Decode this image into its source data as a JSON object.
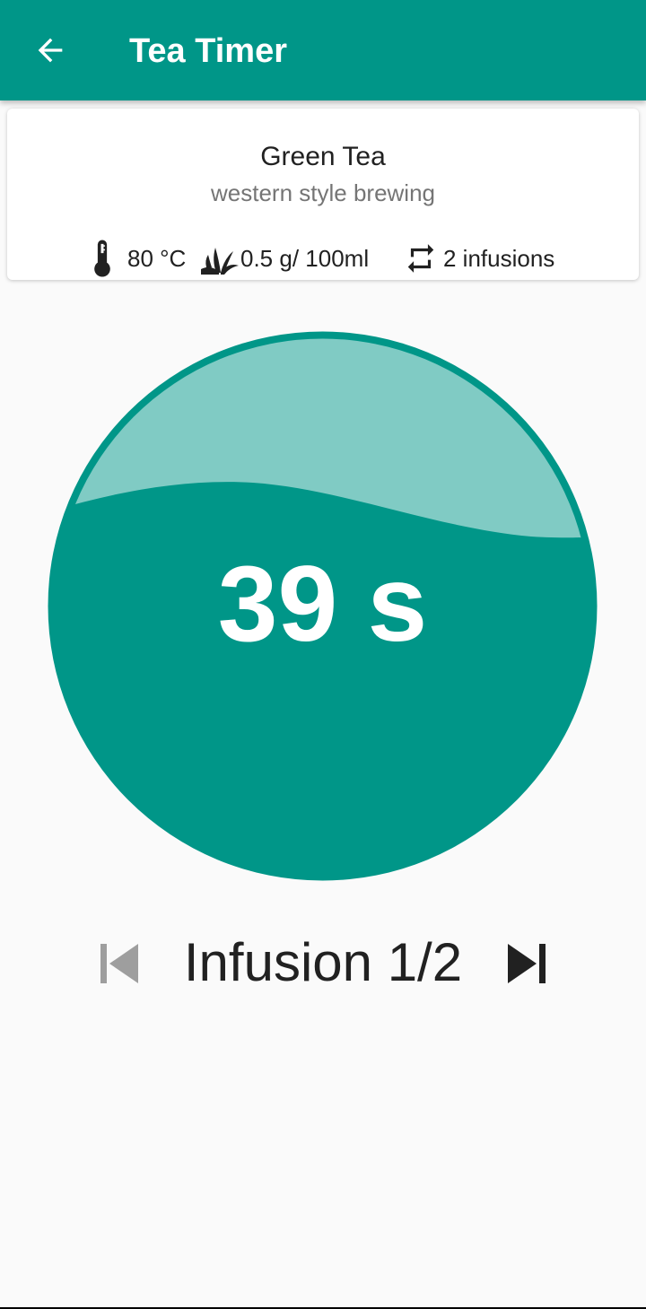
{
  "app_bar": {
    "title": "Tea Timer",
    "back_icon": "arrow-back-icon",
    "color": "#009688"
  },
  "tea": {
    "name": "Green Tea",
    "style": "western style brewing",
    "temperature": "80 °C",
    "temperature_icon": "thermometer-icon",
    "amount": "0.5 g/ 100ml",
    "amount_icon": "leaves-icon",
    "infusions": "2 infusions",
    "infusions_icon": "repeat-icon"
  },
  "timer": {
    "remaining": "39 s",
    "fill_fraction": 0.68,
    "fill_color": "#009688",
    "empty_color": "#80cbc4"
  },
  "infusion": {
    "label": "Infusion 1/2",
    "current": 1,
    "total": 2,
    "previous_icon": "skip-previous-icon",
    "next_icon": "skip-next-icon",
    "previous_enabled": false,
    "next_enabled": true
  }
}
